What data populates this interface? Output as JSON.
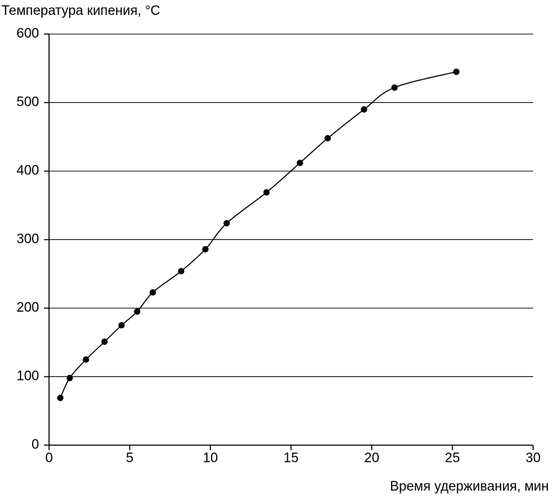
{
  "chart_data": {
    "type": "scatter",
    "ylabel": "Температура кипения, °С",
    "xlabel": "Время удерживания, мин",
    "xlim": [
      0,
      30
    ],
    "xticks": [
      0,
      5,
      10,
      15,
      20,
      25,
      30
    ],
    "ylim": [
      0,
      600
    ],
    "yticks": [
      0,
      100,
      200,
      300,
      400,
      500,
      600
    ],
    "grid": true,
    "series": [
      {
        "color": "#000000",
        "x": [
          0.7,
          1.28,
          2.29,
          3.44,
          4.49,
          5.46,
          6.43,
          8.19,
          9.69,
          11.01,
          13.48,
          15.55,
          17.27,
          19.52,
          21.41,
          25.24
        ],
        "values": [
          69,
          98,
          125,
          151,
          175,
          195,
          223,
          254,
          286,
          324,
          369,
          412,
          448,
          490,
          522,
          545
        ]
      }
    ]
  }
}
